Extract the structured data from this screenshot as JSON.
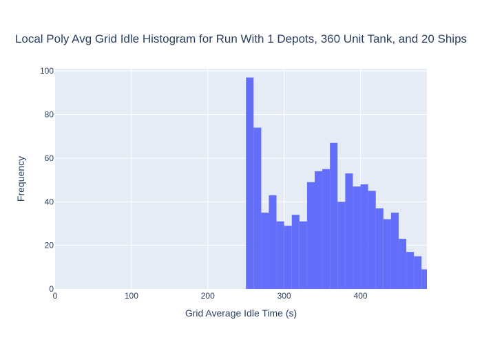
{
  "chart_data": {
    "type": "bar",
    "title": "Local Poly Avg Grid Idle Histogram for Run With 1 Depots, 360 Unit Tank, and 20 Ships",
    "xlabel": "Grid Average Idle Time (s)",
    "ylabel": "Frequency",
    "xlim": [
      0,
      487
    ],
    "ylim": [
      0,
      101
    ],
    "x_ticks": [
      0,
      100,
      200,
      300,
      400
    ],
    "y_ticks": [
      0,
      20,
      40,
      60,
      80,
      100
    ],
    "bin_width": 10,
    "bin_starts": [
      250,
      260,
      270,
      280,
      290,
      300,
      310,
      320,
      330,
      340,
      350,
      360,
      370,
      380,
      390,
      400,
      410,
      420,
      430,
      440,
      450,
      460,
      470,
      480
    ],
    "values": [
      97,
      74,
      35,
      43,
      31,
      29,
      34,
      31,
      49,
      54,
      55,
      67,
      40,
      53,
      47,
      48,
      45,
      37,
      32,
      35,
      23,
      17,
      15,
      9
    ],
    "grid": true,
    "legend": "none"
  },
  "colors": {
    "bar": "#636efa",
    "plot_bg": "#e5ecf6",
    "grid": "#ffffff",
    "text": "#2a3f5f"
  }
}
